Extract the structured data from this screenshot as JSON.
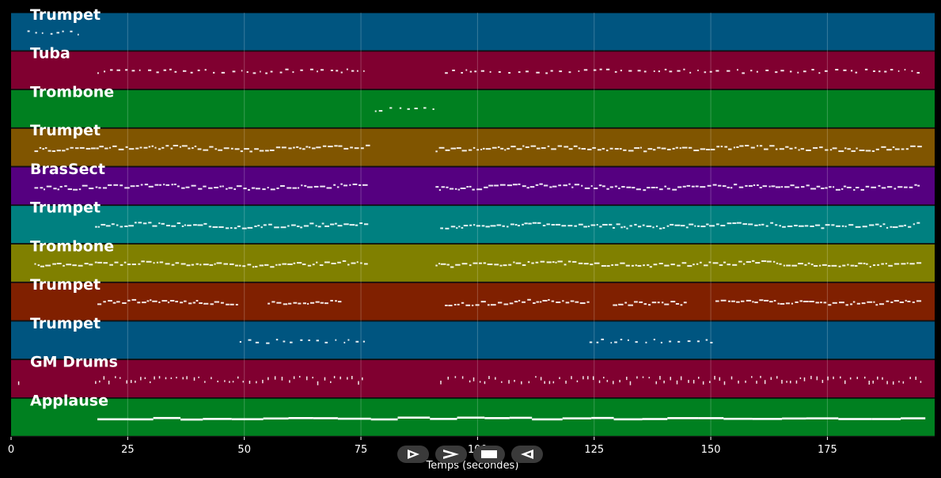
{
  "chart_data": {
    "type": "piano-roll",
    "xlabel": "Temps (secondes)",
    "xlim": [
      0,
      198
    ],
    "xticks": [
      0,
      25,
      50,
      75,
      100,
      125,
      150,
      175
    ],
    "grid": true,
    "tracks": [
      {
        "name": "Trumpet",
        "color": "#005580",
        "segments": [
          [
            3.5,
            16
          ]
        ],
        "style": "sparse"
      },
      {
        "name": "Tuba",
        "color": "#800030",
        "segments": [
          [
            18.5,
            76
          ],
          [
            93,
            196
          ]
        ],
        "style": "sparse"
      },
      {
        "name": "Trombone",
        "color": "#008020",
        "segments": [
          [
            78,
            91.5
          ]
        ],
        "style": "sparse"
      },
      {
        "name": "Trumpet",
        "color": "#805500",
        "segments": [
          [
            5,
            77
          ],
          [
            91,
            196
          ]
        ],
        "style": "dense"
      },
      {
        "name": "BrasSect",
        "color": "#550080",
        "segments": [
          [
            5,
            77
          ],
          [
            91,
            196
          ]
        ],
        "style": "dense"
      },
      {
        "name": "Trumpet",
        "color": "#008080",
        "segments": [
          [
            18,
            77
          ],
          [
            92,
            196
          ]
        ],
        "style": "dense"
      },
      {
        "name": "Trombone",
        "color": "#808000",
        "segments": [
          [
            5,
            77
          ],
          [
            91,
            196
          ]
        ],
        "style": "dense"
      },
      {
        "name": "Trumpet",
        "color": "#802000",
        "segments": [
          [
            18.5,
            49
          ],
          [
            55,
            71.5
          ],
          [
            93,
            124
          ],
          [
            129,
            145
          ],
          [
            151,
            196
          ]
        ],
        "style": "dense"
      },
      {
        "name": "Trumpet",
        "color": "#005580",
        "segments": [
          [
            49,
            77
          ],
          [
            124,
            151
          ]
        ],
        "style": "sparse"
      },
      {
        "name": "GM Drums",
        "color": "#800030",
        "segments": [
          [
            1.5,
            2
          ],
          [
            18,
            76
          ],
          [
            92,
            196
          ]
        ],
        "style": "drums"
      },
      {
        "name": "Applause",
        "color": "#008020",
        "segments": [
          [
            18.5,
            196
          ]
        ],
        "style": "line"
      }
    ]
  },
  "controls": [
    {
      "icon": "play-outline-icon"
    },
    {
      "icon": "fast-forward-icon"
    },
    {
      "icon": "stop-icon"
    },
    {
      "icon": "rewind-icon"
    }
  ]
}
